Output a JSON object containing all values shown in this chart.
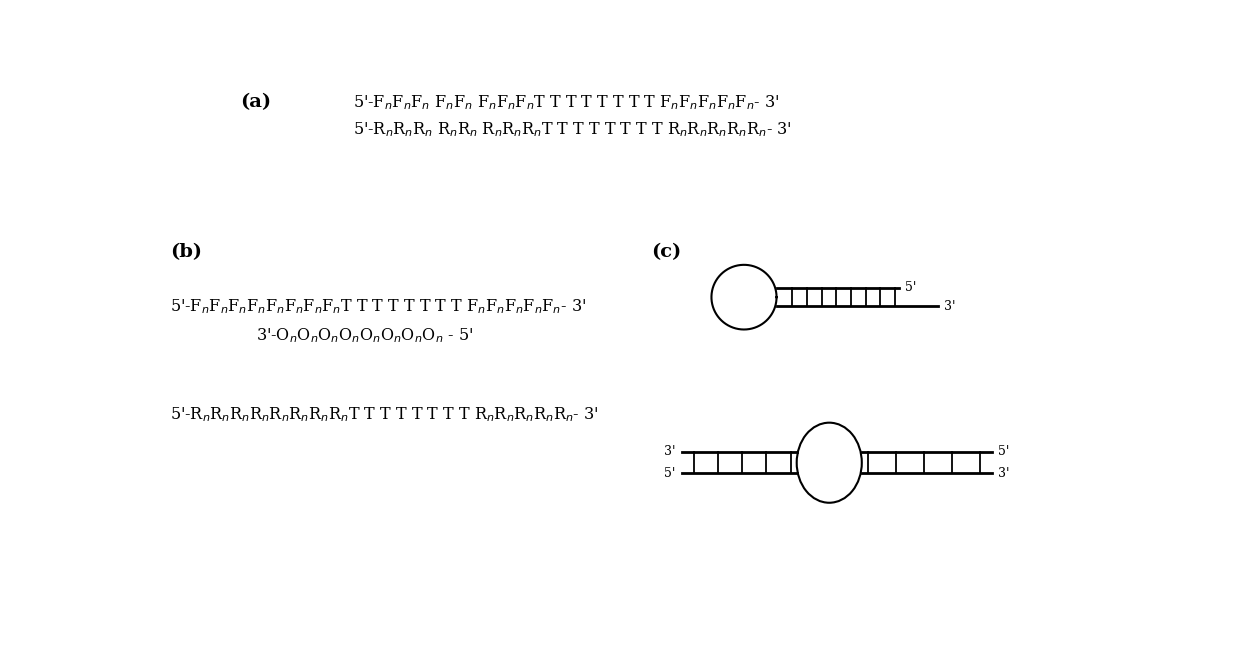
{
  "bg_color": "#ffffff",
  "fig_width": 12.4,
  "fig_height": 6.54,
  "label_a": "(a)",
  "label_b": "(b)",
  "label_c": "(c)",
  "font_size_label": 14,
  "font_size_seq": 11.5,
  "text_color": "#000000"
}
